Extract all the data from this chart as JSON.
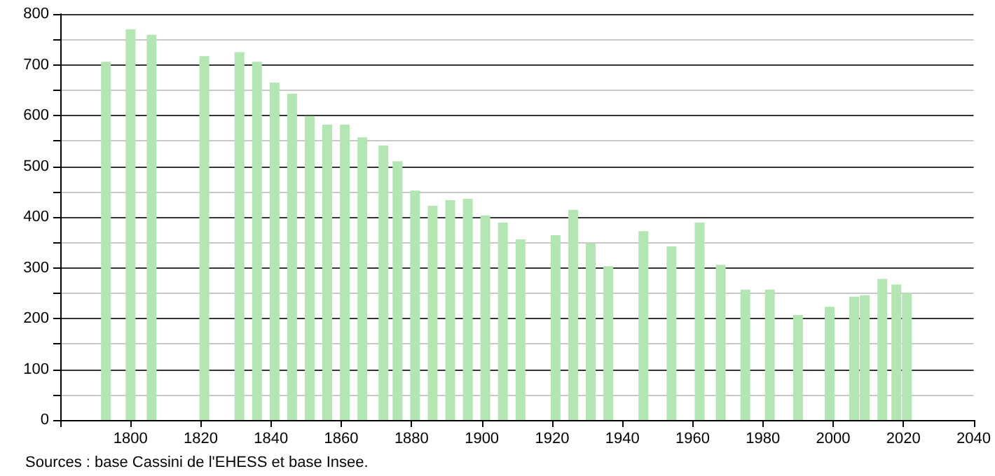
{
  "chart_data": {
    "type": "bar",
    "x": [
      1793,
      1800,
      1806,
      1821,
      1831,
      1836,
      1841,
      1846,
      1851,
      1856,
      1861,
      1866,
      1872,
      1876,
      1881,
      1886,
      1891,
      1896,
      1901,
      1906,
      1911,
      1921,
      1926,
      1931,
      1936,
      1946,
      1954,
      1962,
      1968,
      1975,
      1982,
      1990,
      1999,
      2006,
      2009,
      2014,
      2018,
      2021
    ],
    "values": [
      706,
      770,
      759,
      717,
      725,
      706,
      665,
      643,
      599,
      582,
      582,
      557,
      541,
      510,
      452,
      422,
      433,
      436,
      403,
      389,
      356,
      364,
      414,
      348,
      303,
      372,
      342,
      389,
      306,
      257,
      257,
      207,
      223,
      243,
      246,
      278,
      267,
      250
    ],
    "color": "#b3e6b3",
    "xlim": [
      1780,
      2040
    ],
    "xticks": [
      {
        "value": 1780,
        "label": null
      },
      1800,
      1820,
      1840,
      1860,
      1880,
      1900,
      1920,
      1940,
      1960,
      1980,
      2000,
      2020,
      2040
    ],
    "ylim": [
      0,
      800
    ],
    "yticks": [
      0,
      {
        "value": 50,
        "label": null
      },
      100,
      {
        "value": 150,
        "label": null
      },
      200,
      {
        "value": 250,
        "label": null
      },
      300,
      {
        "value": 350,
        "label": null
      },
      400,
      {
        "value": 450,
        "label": null
      },
      500,
      {
        "value": 550,
        "label": null
      },
      600,
      {
        "value": 650,
        "label": null
      },
      700,
      {
        "value": 750,
        "label": null
      },
      800
    ],
    "grid": "y",
    "annotations": [
      "Sources : base Cassini de l'EHESS et base Insee."
    ]
  }
}
